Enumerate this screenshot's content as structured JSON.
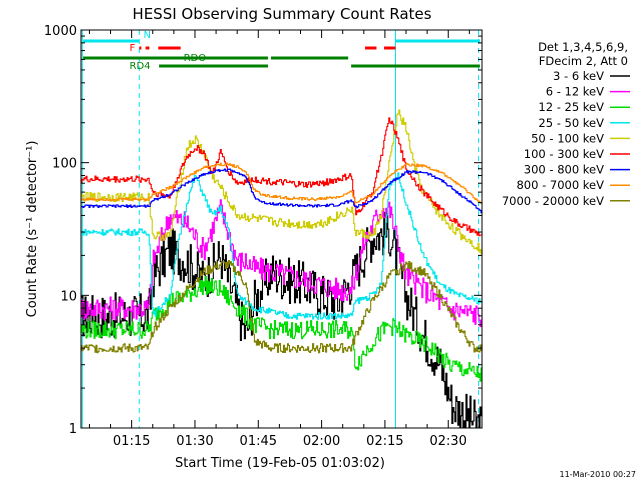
{
  "chart_data": {
    "type": "line",
    "title": "HESSI Observing Summary Count Rates",
    "xlabel": "Start Time (19-Feb-05 01:03:02)",
    "ylabel": "Count Rate (s⁻¹ detector⁻¹)",
    "yscale": "log",
    "ylim": [
      1,
      1000
    ],
    "xlim_minutes": [
      63.0,
      158.0
    ],
    "x_ticks": [
      {
        "label": "01:15",
        "minute": 75
      },
      {
        "label": "01:30",
        "minute": 90
      },
      {
        "label": "01:45",
        "minute": 105
      },
      {
        "label": "02:00",
        "minute": 120
      },
      {
        "label": "02:15",
        "minute": 135
      },
      {
        "label": "02:30",
        "minute": 150
      }
    ],
    "y_ticks": [
      {
        "label": "1",
        "value": 1
      },
      {
        "label": "10",
        "value": 10
      },
      {
        "label": "100",
        "value": 100
      },
      {
        "label": "1000",
        "value": 1000
      }
    ],
    "legend_header": [
      "Det 1,3,4,5,6,9,",
      "FDecim 2, Att 0"
    ],
    "series": [
      {
        "name": "3 - 6 keV",
        "color": "#000000",
        "points": [
          [
            63,
            7
          ],
          [
            79,
            7
          ],
          [
            80,
            14
          ],
          [
            84,
            22
          ],
          [
            88,
            18
          ],
          [
            92,
            13
          ],
          [
            96,
            20
          ],
          [
            100,
            8
          ],
          [
            102,
            5
          ],
          [
            104,
            9
          ],
          [
            108,
            15
          ],
          [
            112,
            13
          ],
          [
            116,
            12
          ],
          [
            120,
            10
          ],
          [
            124,
            9
          ],
          [
            127,
            13
          ],
          [
            132,
            28
          ],
          [
            136,
            30
          ],
          [
            140,
            10
          ],
          [
            144,
            5
          ],
          [
            148,
            3
          ],
          [
            151,
            1.5
          ],
          [
            158,
            1
          ]
        ]
      },
      {
        "name": "6 - 12 keV",
        "color": "#ff00ff",
        "points": [
          [
            63,
            8
          ],
          [
            79,
            8
          ],
          [
            80,
            18
          ],
          [
            84,
            40
          ],
          [
            88,
            35
          ],
          [
            92,
            22
          ],
          [
            96,
            45
          ],
          [
            100,
            18
          ],
          [
            102,
            18
          ],
          [
            104,
            16
          ],
          [
            108,
            15
          ],
          [
            112,
            14
          ],
          [
            116,
            13
          ],
          [
            120,
            12
          ],
          [
            124,
            11
          ],
          [
            127,
            11
          ],
          [
            130,
            25
          ],
          [
            134,
            45
          ],
          [
            136,
            45
          ],
          [
            140,
            14
          ],
          [
            146,
            10
          ],
          [
            150,
            8
          ],
          [
            158,
            7
          ]
        ]
      },
      {
        "name": "12 - 25 keV",
        "color": "#00dd00",
        "points": [
          [
            63,
            5.5
          ],
          [
            79,
            5.5
          ],
          [
            80,
            7
          ],
          [
            84,
            9
          ],
          [
            88,
            10
          ],
          [
            92,
            12
          ],
          [
            96,
            11
          ],
          [
            100,
            8
          ],
          [
            104,
            6
          ],
          [
            108,
            5.5
          ],
          [
            112,
            5.5
          ],
          [
            116,
            5.5
          ],
          [
            120,
            5.5
          ],
          [
            124,
            5.5
          ],
          [
            127,
            5.5
          ],
          [
            128,
            3
          ],
          [
            132,
            4.5
          ],
          [
            136,
            6
          ],
          [
            140,
            5
          ],
          [
            146,
            4
          ],
          [
            150,
            3
          ],
          [
            158,
            2.5
          ]
        ]
      },
      {
        "name": "25 - 50 keV",
        "color": "#00e5ee",
        "points": [
          [
            63,
            30
          ],
          [
            79,
            30
          ],
          [
            80,
            7
          ],
          [
            84,
            10
          ],
          [
            86,
            25
          ],
          [
            88,
            50
          ],
          [
            90,
            80
          ],
          [
            94,
            40
          ],
          [
            96,
            45
          ],
          [
            98,
            30
          ],
          [
            100,
            10
          ],
          [
            104,
            8
          ],
          [
            108,
            7.5
          ],
          [
            112,
            7
          ],
          [
            116,
            7
          ],
          [
            120,
            7
          ],
          [
            124,
            7
          ],
          [
            127,
            7
          ],
          [
            128,
            9
          ],
          [
            132,
            10
          ],
          [
            134,
            12
          ],
          [
            136,
            70
          ],
          [
            138,
            80
          ],
          [
            140,
            50
          ],
          [
            144,
            20
          ],
          [
            148,
            12
          ],
          [
            152,
            10
          ],
          [
            158,
            9
          ]
        ]
      },
      {
        "name": "50 - 100 keV",
        "color": "#cccc00",
        "points": [
          [
            63,
            55
          ],
          [
            79,
            55
          ],
          [
            80,
            28
          ],
          [
            84,
            28
          ],
          [
            86,
            60
          ],
          [
            88,
            130
          ],
          [
            90,
            150
          ],
          [
            92,
            120
          ],
          [
            94,
            80
          ],
          [
            96,
            65
          ],
          [
            98,
            50
          ],
          [
            100,
            40
          ],
          [
            104,
            38
          ],
          [
            108,
            36
          ],
          [
            112,
            35
          ],
          [
            116,
            34
          ],
          [
            120,
            35
          ],
          [
            124,
            40
          ],
          [
            127,
            45
          ],
          [
            128,
            30
          ],
          [
            132,
            28
          ],
          [
            134,
            40
          ],
          [
            136,
            100
          ],
          [
            138,
            240
          ],
          [
            140,
            180
          ],
          [
            142,
            90
          ],
          [
            144,
            60
          ],
          [
            148,
            40
          ],
          [
            152,
            30
          ],
          [
            158,
            22
          ]
        ]
      },
      {
        "name": "100 - 300 keV",
        "color": "#ff0000",
        "points": [
          [
            63,
            75
          ],
          [
            79,
            75
          ],
          [
            80,
            60
          ],
          [
            84,
            55
          ],
          [
            86,
            80
          ],
          [
            88,
            110
          ],
          [
            90,
            130
          ],
          [
            92,
            120
          ],
          [
            94,
            80
          ],
          [
            96,
            120
          ],
          [
            98,
            85
          ],
          [
            100,
            70
          ],
          [
            104,
            75
          ],
          [
            108,
            72
          ],
          [
            112,
            70
          ],
          [
            116,
            68
          ],
          [
            120,
            70
          ],
          [
            124,
            75
          ],
          [
            127,
            80
          ],
          [
            128,
            40
          ],
          [
            132,
            60
          ],
          [
            134,
            110
          ],
          [
            136,
            220
          ],
          [
            138,
            150
          ],
          [
            140,
            90
          ],
          [
            144,
            60
          ],
          [
            148,
            45
          ],
          [
            152,
            35
          ],
          [
            158,
            28
          ]
        ]
      },
      {
        "name": "300 - 800 keV",
        "color": "#0000ff",
        "points": [
          [
            63,
            47
          ],
          [
            79,
            47
          ],
          [
            80,
            52
          ],
          [
            84,
            58
          ],
          [
            88,
            70
          ],
          [
            92,
            82
          ],
          [
            96,
            88
          ],
          [
            98,
            88
          ],
          [
            100,
            85
          ],
          [
            102,
            78
          ],
          [
            104,
            55
          ],
          [
            106,
            50
          ],
          [
            112,
            48
          ],
          [
            118,
            47
          ],
          [
            124,
            48
          ],
          [
            127,
            52
          ],
          [
            128,
            46
          ],
          [
            132,
            52
          ],
          [
            136,
            70
          ],
          [
            140,
            85
          ],
          [
            144,
            85
          ],
          [
            148,
            75
          ],
          [
            152,
            60
          ],
          [
            156,
            48
          ],
          [
            158,
            42
          ]
        ]
      },
      {
        "name": "800 - 7000 keV",
        "color": "#ff8c00",
        "points": [
          [
            63,
            53
          ],
          [
            79,
            53
          ],
          [
            80,
            58
          ],
          [
            84,
            65
          ],
          [
            88,
            78
          ],
          [
            92,
            92
          ],
          [
            96,
            97
          ],
          [
            98,
            97
          ],
          [
            100,
            93
          ],
          [
            102,
            85
          ],
          [
            104,
            62
          ],
          [
            106,
            57
          ],
          [
            112,
            54
          ],
          [
            118,
            53
          ],
          [
            124,
            55
          ],
          [
            127,
            60
          ],
          [
            128,
            50
          ],
          [
            132,
            58
          ],
          [
            136,
            80
          ],
          [
            140,
            97
          ],
          [
            144,
            95
          ],
          [
            148,
            85
          ],
          [
            152,
            70
          ],
          [
            156,
            55
          ],
          [
            158,
            48
          ]
        ]
      },
      {
        "name": "7000 - 20000 keV",
        "color": "#808000",
        "points": [
          [
            63,
            4
          ],
          [
            79,
            4
          ],
          [
            80,
            5.5
          ],
          [
            84,
            8
          ],
          [
            88,
            11
          ],
          [
            92,
            15
          ],
          [
            96,
            17
          ],
          [
            98,
            17
          ],
          [
            100,
            15
          ],
          [
            102,
            12
          ],
          [
            104,
            4.5
          ],
          [
            108,
            4
          ],
          [
            116,
            4
          ],
          [
            124,
            4
          ],
          [
            127,
            4
          ],
          [
            128,
            5
          ],
          [
            132,
            9
          ],
          [
            136,
            14
          ],
          [
            140,
            17
          ],
          [
            144,
            15
          ],
          [
            148,
            10
          ],
          [
            152,
            6
          ],
          [
            156,
            4
          ],
          [
            158,
            4
          ]
        ]
      }
    ],
    "flag_bars": [
      {
        "label": "N",
        "color": "#00e5ee",
        "segments": [
          [
            63.5,
            76.8
          ],
          [
            137.5,
            157.5
          ]
        ]
      },
      {
        "label": "F",
        "color": "#ff0000",
        "segments": [
          [
            76.8,
            77.3
          ],
          [
            78.3,
            79.2
          ],
          [
            81.3,
            86.6
          ],
          [
            130.3,
            133.0
          ],
          [
            134.8,
            137.5
          ]
        ]
      },
      {
        "label": "RDO",
        "color": "#008000",
        "segments": [
          [
            63.5,
            107.3
          ],
          [
            108.0,
            126.3
          ]
        ]
      },
      {
        "label": "RD4",
        "color": "#008000",
        "segments": [
          [
            81.5,
            107.3
          ],
          [
            127.0,
            157.5
          ]
        ]
      }
    ],
    "vertical_markers": [
      {
        "minute": 63.3,
        "style": "solid"
      },
      {
        "minute": 76.8,
        "style": "dashed"
      },
      {
        "minute": 137.5,
        "style": "solid"
      },
      {
        "minute": 157.2,
        "style": "dashed"
      }
    ],
    "grid": false,
    "legend_position": "right"
  },
  "footer": {
    "timestamp": "11-Mar-2010 00:27"
  }
}
